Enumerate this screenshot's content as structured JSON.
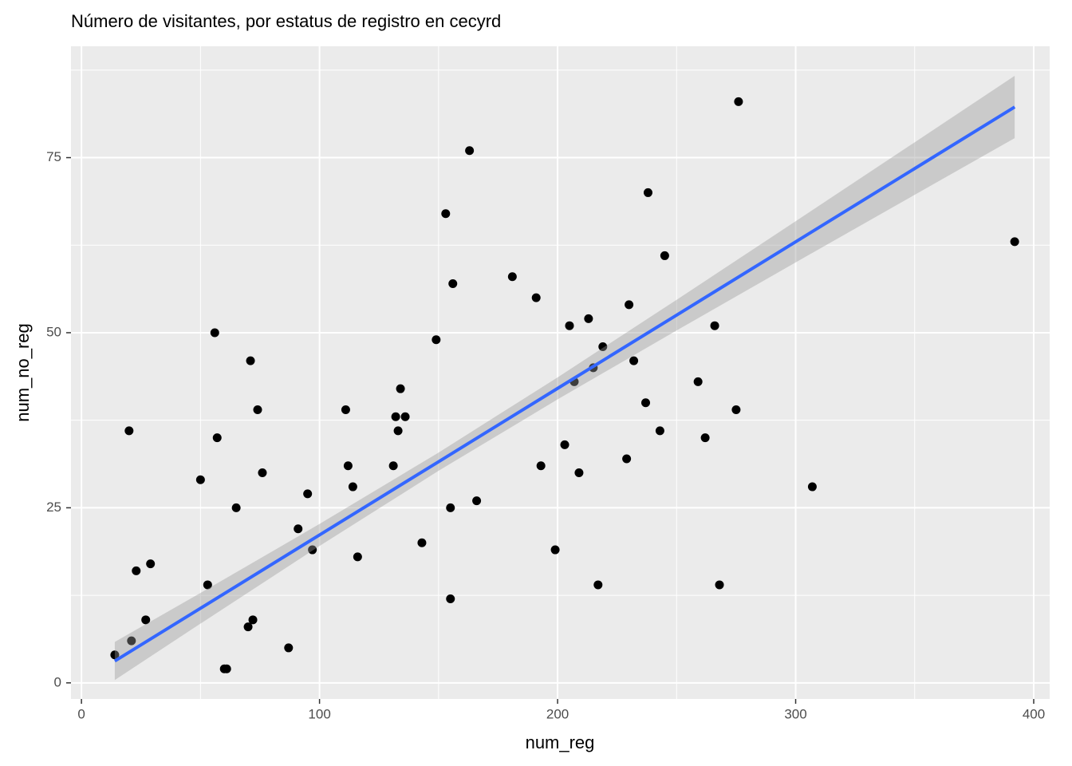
{
  "chart_data": {
    "type": "scatter",
    "title": "Número de visitantes, por estatus de registro en cecyrd",
    "x_label": "num_reg",
    "y_label": "num_no_reg",
    "xlim": [
      -4.4,
      406.7
    ],
    "ylim": [
      -2.3,
      90.9
    ],
    "xticks": [
      0,
      100,
      200,
      300,
      400
    ],
    "yticks": [
      0,
      25,
      50,
      75
    ],
    "x_minor_grid": [
      50,
      150,
      250,
      350
    ],
    "y_minor_grid": [
      12.5,
      37.5,
      62.5,
      87.5
    ],
    "grid": true,
    "points": {
      "color": "#000000",
      "x": [
        14,
        20,
        21,
        23,
        27,
        29,
        50,
        53,
        56,
        57,
        60,
        61,
        65,
        70,
        71,
        72,
        74,
        76,
        87,
        91,
        95,
        97,
        111,
        112,
        114,
        116,
        131,
        132,
        133,
        134,
        136,
        143,
        149,
        153,
        155,
        155,
        156,
        163,
        166,
        181,
        191,
        193,
        199,
        203,
        205,
        207,
        209,
        213,
        215,
        217,
        219,
        229,
        230,
        232,
        237,
        238,
        243,
        245,
        259,
        262,
        266,
        268,
        275,
        276,
        307,
        392
      ],
      "y": [
        4,
        36,
        6,
        16,
        9,
        17,
        29,
        14,
        50,
        35,
        2,
        2,
        25,
        8,
        46,
        9,
        39,
        30,
        5,
        22,
        27,
        19,
        39,
        31,
        28,
        18,
        31,
        38,
        36,
        42,
        38,
        20,
        49,
        67,
        12,
        25,
        57,
        76,
        26,
        58,
        55,
        31,
        19,
        34,
        51,
        43,
        30,
        52,
        45,
        14,
        48,
        32,
        54,
        46,
        40,
        70,
        36,
        61,
        43,
        35,
        51,
        14,
        39,
        83,
        28,
        63
      ]
    },
    "smooth": {
      "color": "#3366ff",
      "fill": "#999999",
      "x": [
        14,
        50,
        100,
        150,
        200,
        250,
        300,
        350,
        392
      ],
      "y": [
        3.12,
        10.65,
        21.12,
        31.58,
        42.05,
        52.51,
        62.98,
        73.44,
        82.23
      ],
      "ymin": [
        0.4,
        8.46,
        19.55,
        30.28,
        40.48,
        50.32,
        60.04,
        69.69,
        77.78
      ],
      "ymax": [
        5.84,
        12.84,
        22.69,
        32.88,
        43.62,
        54.7,
        65.92,
        77.19,
        86.68
      ]
    }
  }
}
